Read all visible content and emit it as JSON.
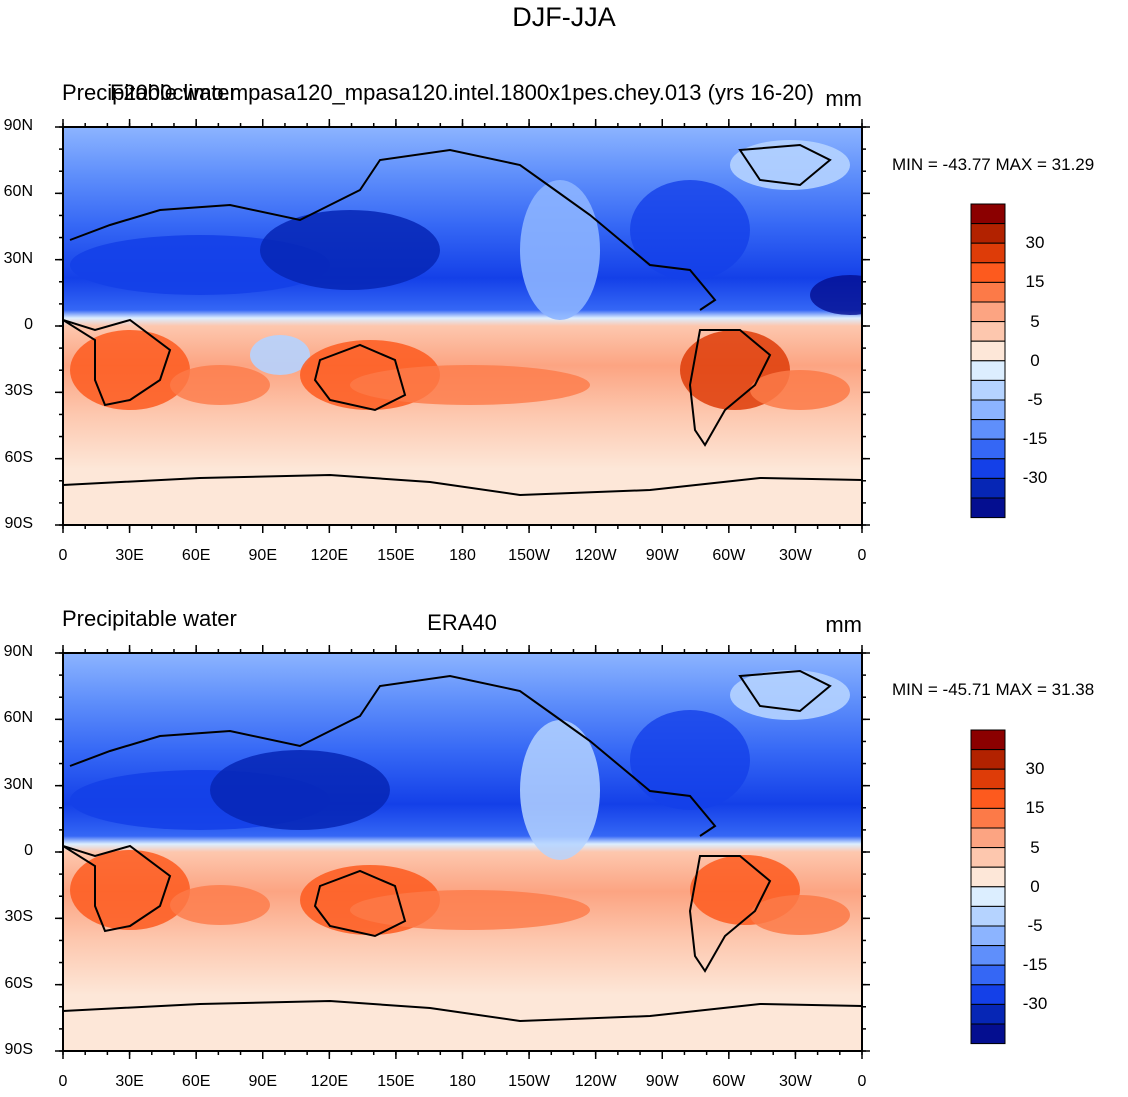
{
  "figure_title": "DJF-JJA",
  "panels": [
    {
      "left_title": "Precipitable water",
      "center_title": "F2000climo.mpasa120_mpasa120.intel.1800x1pes.chey.013 (yrs 16-20)",
      "units": "mm",
      "stats": "MIN = -43.77 MAX =  31.29"
    },
    {
      "left_title": "Precipitable water",
      "center_title": "ERA40",
      "units": "mm",
      "stats": "MIN = -45.71 MAX =  31.38"
    }
  ],
  "axes": {
    "lat_labels": [
      "90N",
      "60N",
      "30N",
      "0",
      "30S",
      "60S",
      "90S"
    ],
    "lon_labels": [
      "0",
      "30E",
      "60E",
      "90E",
      "120E",
      "150E",
      "180",
      "150W",
      "120W",
      "90W",
      "60W",
      "30W",
      "0"
    ]
  },
  "colorbar": {
    "labels": [
      "30",
      "15",
      "5",
      "0",
      "-5",
      "-15",
      "-30"
    ],
    "colors": [
      "#8b0000",
      "#b22200",
      "#de3c08",
      "#fd5a1e",
      "#fc7a48",
      "#fca482",
      "#fdc7ae",
      "#fde7d8",
      "#dceeff",
      "#b5d3ff",
      "#8cb4ff",
      "#5f8ffb",
      "#3567f5",
      "#1440e8",
      "#0626b5",
      "#040e90"
    ]
  }
}
